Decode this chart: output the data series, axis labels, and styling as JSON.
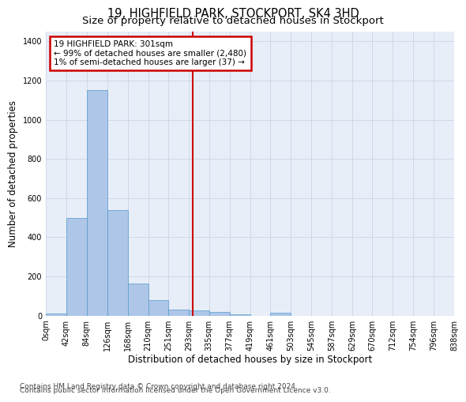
{
  "title": "19, HIGHFIELD PARK, STOCKPORT, SK4 3HD",
  "subtitle": "Size of property relative to detached houses in Stockport",
  "xlabel": "Distribution of detached houses by size in Stockport",
  "ylabel": "Number of detached properties",
  "bar_edges": [
    0,
    42,
    84,
    126,
    168,
    210,
    251,
    293,
    335,
    377,
    419,
    461,
    503,
    545,
    587,
    629,
    670,
    712,
    754,
    796,
    838
  ],
  "bar_heights": [
    10,
    500,
    1150,
    540,
    165,
    80,
    32,
    27,
    18,
    5,
    0,
    15,
    0,
    0,
    0,
    0,
    0,
    0,
    0,
    0
  ],
  "bar_color": "#aec6e8",
  "bar_edge_color": "#5599cc",
  "vline_x": 301,
  "vline_color": "#cc0000",
  "annotation_line1": "19 HIGHFIELD PARK: 301sqm",
  "annotation_line2": "← 99% of detached houses are smaller (2,480)",
  "annotation_line3": "1% of semi-detached houses are larger (37) →",
  "annotation_box_color": "#cc0000",
  "ylim": [
    0,
    1450
  ],
  "yticks": [
    0,
    200,
    400,
    600,
    800,
    1000,
    1200,
    1400
  ],
  "tick_labels": [
    "0sqm",
    "42sqm",
    "84sqm",
    "126sqm",
    "168sqm",
    "210sqm",
    "251sqm",
    "293sqm",
    "335sqm",
    "377sqm",
    "419sqm",
    "461sqm",
    "503sqm",
    "545sqm",
    "587sqm",
    "629sqm",
    "670sqm",
    "712sqm",
    "754sqm",
    "796sqm",
    "838sqm"
  ],
  "footer1": "Contains HM Land Registry data © Crown copyright and database right 2024.",
  "footer2": "Contains public sector information licensed under the Open Government Licence v3.0.",
  "bg_color": "#ffffff",
  "plot_bg_color": "#e8eef8",
  "grid_color": "#d0d8e8",
  "title_fontsize": 10.5,
  "subtitle_fontsize": 9.5,
  "axis_label_fontsize": 8.5,
  "tick_fontsize": 7,
  "footer_fontsize": 6.5
}
